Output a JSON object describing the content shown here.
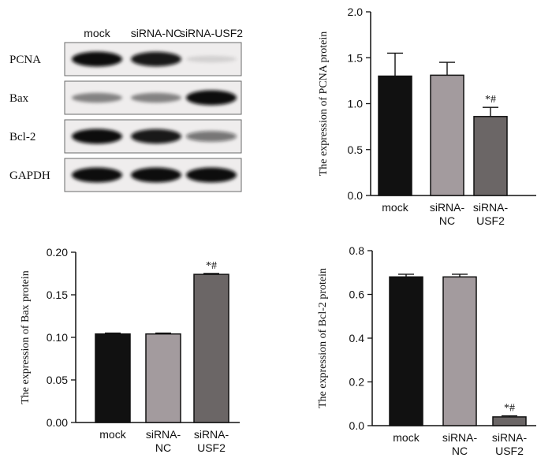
{
  "blot": {
    "lanes": [
      "mock",
      "siRNA-NC",
      "siRNA-USF2"
    ],
    "rows": [
      {
        "label": "PCNA",
        "intensity": [
          1.0,
          0.95,
          0.12
        ]
      },
      {
        "label": "Bax",
        "intensity": [
          0.45,
          0.45,
          1.0
        ]
      },
      {
        "label": "Bcl-2",
        "intensity": [
          1.0,
          0.95,
          0.55
        ]
      },
      {
        "label": "GAPDH",
        "intensity": [
          1.0,
          1.0,
          1.0
        ]
      }
    ]
  },
  "chart_data": [
    {
      "type": "bar",
      "ylabel": "The expression of PCNA protein",
      "categories": [
        "mock",
        "siRNA-NC",
        "siRNA-USF2"
      ],
      "category_lines": [
        [
          "mock"
        ],
        [
          "siRNA-",
          "NC"
        ],
        [
          "siRNA-",
          "USF2"
        ]
      ],
      "values": [
        1.3,
        1.31,
        0.86
      ],
      "errors": [
        0.25,
        0.14,
        0.1
      ],
      "annotations": [
        "",
        "",
        "*#"
      ],
      "ylim": [
        0,
        2.0
      ],
      "yticks": [
        "0.0",
        "0.5",
        "1.0",
        "1.5",
        "2.0"
      ],
      "colors": [
        "#111111",
        "#a39b9e",
        "#6b6666"
      ]
    },
    {
      "type": "bar",
      "ylabel": "The expression of Bax protein",
      "categories": [
        "mock",
        "siRNA-NC",
        "siRNA-USF2"
      ],
      "category_lines": [
        [
          "mock"
        ],
        [
          "siRNA-",
          "NC"
        ],
        [
          "siRNA-",
          "USF2"
        ]
      ],
      "values": [
        0.104,
        0.104,
        0.174
      ],
      "errors": [
        0.001,
        0.001,
        0.001
      ],
      "annotations": [
        "",
        "",
        "*#"
      ],
      "ylim": [
        0,
        0.2
      ],
      "yticks": [
        "0.00",
        "0.05",
        "0.10",
        "0.15",
        "0.20"
      ],
      "colors": [
        "#111111",
        "#a39b9e",
        "#6b6666"
      ]
    },
    {
      "type": "bar",
      "ylabel": "The expression of Bcl-2 protein",
      "categories": [
        "mock",
        "siRNA-NC",
        "siRNA-USF2"
      ],
      "category_lines": [
        [
          "mock"
        ],
        [
          "siRNA-",
          "NC"
        ],
        [
          "siRNA-",
          "USF2"
        ]
      ],
      "values": [
        0.68,
        0.68,
        0.04
      ],
      "errors": [
        0.012,
        0.012,
        0.005
      ],
      "annotations": [
        "",
        "",
        "*#"
      ],
      "ylim": [
        0,
        0.8
      ],
      "yticks": [
        "0.0",
        "0.2",
        "0.4",
        "0.6",
        "0.8"
      ],
      "colors": [
        "#111111",
        "#a39b9e",
        "#6b6666"
      ]
    }
  ]
}
